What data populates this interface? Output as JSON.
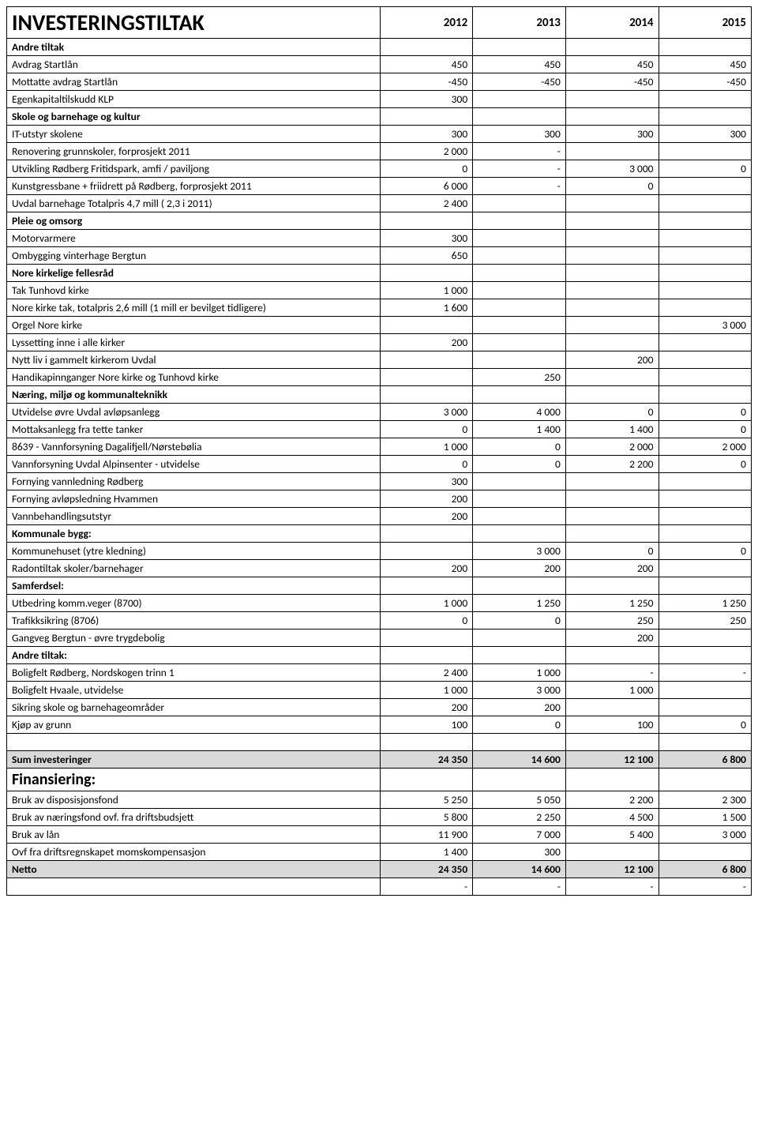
{
  "header": {
    "title": "INVESTERINGSTILTAK",
    "years": [
      "2012",
      "2013",
      "2014",
      "2015"
    ]
  },
  "sections": [
    {
      "type": "section",
      "label": "Andre tiltak"
    },
    {
      "type": "row",
      "label": "Avdrag Startlån",
      "vals": [
        "450",
        "450",
        "450",
        "450"
      ]
    },
    {
      "type": "row",
      "label": "Mottatte avdrag Startlån",
      "vals": [
        "-450",
        "-450",
        "-450",
        "-450"
      ]
    },
    {
      "type": "row",
      "label": "Egenkapitaltilskudd KLP",
      "vals": [
        "300",
        "",
        "",
        ""
      ]
    },
    {
      "type": "section",
      "label": "Skole og barnehage og kultur"
    },
    {
      "type": "row",
      "label": "IT-utstyr skolene",
      "vals": [
        "300",
        "300",
        "300",
        "300"
      ]
    },
    {
      "type": "row",
      "label": "Renovering grunnskoler, forprosjekt 2011",
      "vals": [
        "2 000",
        "-",
        "",
        ""
      ]
    },
    {
      "type": "row",
      "label": "Utvikling Rødberg Fritidspark, amfi / paviljong",
      "vals": [
        "0",
        "-",
        "3 000",
        "0"
      ]
    },
    {
      "type": "row",
      "label": "Kunstgressbane + friidrett på Rødberg, forprosjekt 2011",
      "vals": [
        "6 000",
        "-",
        "0",
        ""
      ]
    },
    {
      "type": "row",
      "label": "Uvdal barnehage Totalpris 4,7 mill ( 2,3 i 2011)",
      "vals": [
        "2 400",
        "",
        "",
        ""
      ]
    },
    {
      "type": "section",
      "label": "Pleie og omsorg"
    },
    {
      "type": "row",
      "label": "Motorvarmere",
      "vals": [
        "300",
        "",
        "",
        ""
      ]
    },
    {
      "type": "row",
      "label": "Ombygging vinterhage Bergtun",
      "vals": [
        "650",
        "",
        "",
        ""
      ]
    },
    {
      "type": "section",
      "label": "Nore kirkelige fellesråd"
    },
    {
      "type": "row",
      "label": "Tak Tunhovd kirke",
      "vals": [
        "1 000",
        "",
        "",
        ""
      ]
    },
    {
      "type": "row",
      "label": "Nore kirke tak, totalpris 2,6 mill (1 mill er bevilget tidligere)",
      "vals": [
        "1 600",
        "",
        "",
        ""
      ]
    },
    {
      "type": "row",
      "label": "Orgel Nore kirke",
      "vals": [
        "",
        "",
        "",
        "3 000"
      ]
    },
    {
      "type": "row",
      "label": "Lyssetting inne i alle kirker",
      "vals": [
        "200",
        "",
        "",
        ""
      ]
    },
    {
      "type": "row",
      "label": "Nytt liv i gammelt kirkerom Uvdal",
      "vals": [
        "",
        "",
        "200",
        ""
      ]
    },
    {
      "type": "row",
      "label": "Handikapinnganger Nore kirke og Tunhovd kirke",
      "vals": [
        "",
        "250",
        "",
        ""
      ]
    },
    {
      "type": "section",
      "label": "Næring, miljø og kommunalteknikk"
    },
    {
      "type": "row",
      "label": "Utvidelse øvre Uvdal avløpsanlegg",
      "vals": [
        "3 000",
        "4 000",
        "0",
        "0"
      ]
    },
    {
      "type": "row",
      "label": "Mottaksanlegg fra tette tanker",
      "vals": [
        "0",
        "1 400",
        "1 400",
        "0"
      ]
    },
    {
      "type": "row",
      "label": "8639 - Vannforsyning Dagalifjell/Nørstebølia",
      "vals": [
        "1 000",
        "0",
        "2 000",
        "2 000"
      ]
    },
    {
      "type": "row",
      "label": "Vannforsyning Uvdal Alpinsenter - utvidelse",
      "vals": [
        "0",
        "0",
        "2 200",
        "0"
      ]
    },
    {
      "type": "row",
      "label": "Fornying vannledning Rødberg",
      "vals": [
        "300",
        "",
        "",
        ""
      ]
    },
    {
      "type": "row",
      "label": "Fornying avløpsledning Hvammen",
      "vals": [
        "200",
        "",
        "",
        ""
      ]
    },
    {
      "type": "row",
      "label": "Vannbehandlingsutstyr",
      "vals": [
        "200",
        "",
        "",
        ""
      ]
    },
    {
      "type": "section",
      "label": "Kommunale bygg:"
    },
    {
      "type": "row",
      "label": "Kommunehuset (ytre kledning)",
      "vals": [
        "",
        "3 000",
        "0",
        "0"
      ]
    },
    {
      "type": "row",
      "label": "Radontiltak skoler/barnehager",
      "vals": [
        "200",
        "200",
        "200",
        ""
      ]
    },
    {
      "type": "section",
      "label": "Samferdsel:"
    },
    {
      "type": "row",
      "label": "Utbedring komm.veger (8700)",
      "vals": [
        "1 000",
        "1 250",
        "1 250",
        "1 250"
      ]
    },
    {
      "type": "row",
      "label": "Trafikksikring (8706)",
      "vals": [
        "0",
        "0",
        "250",
        "250"
      ]
    },
    {
      "type": "row",
      "label": "Gangveg Bergtun - øvre trygdebolig",
      "vals": [
        "",
        "",
        "200",
        ""
      ]
    },
    {
      "type": "section",
      "label": "Andre tiltak:"
    },
    {
      "type": "row",
      "label": "Boligfelt Rødberg, Nordskogen trinn 1",
      "vals": [
        "2 400",
        "1 000",
        "-",
        "-"
      ]
    },
    {
      "type": "row",
      "label": "Boligfelt Hvaale, utvidelse",
      "vals": [
        "1 000",
        "3 000",
        "1 000",
        ""
      ]
    },
    {
      "type": "row",
      "label": "Sikring skole og barnehageområder",
      "vals": [
        "200",
        "200",
        "",
        ""
      ]
    },
    {
      "type": "row",
      "label": "Kjøp av grunn",
      "vals": [
        "100",
        "0",
        "100",
        "0"
      ]
    },
    {
      "type": "blank"
    },
    {
      "type": "sum",
      "label": "Sum investeringer",
      "vals": [
        "24 350",
        "14 600",
        "12 100",
        "6 800"
      ]
    },
    {
      "type": "finhdr",
      "label": "Finansiering:"
    },
    {
      "type": "row",
      "label": "Bruk av disposisjonsfond",
      "vals": [
        "5 250",
        "5 050",
        "2 200",
        "2 300"
      ]
    },
    {
      "type": "row",
      "label": "Bruk av næringsfond ovf. fra driftsbudsjett",
      "vals": [
        "5 800",
        "2 250",
        "4 500",
        "1 500"
      ]
    },
    {
      "type": "row",
      "label": "Bruk av lån",
      "vals": [
        "11 900",
        "7 000",
        "5 400",
        "3 000"
      ]
    },
    {
      "type": "row",
      "label": "Ovf fra driftsregnskapet momskompensasjon",
      "vals": [
        "1 400",
        "300",
        "",
        ""
      ]
    },
    {
      "type": "sum",
      "label": "Netto",
      "vals": [
        "24 350",
        "14 600",
        "12 100",
        "6 800"
      ]
    },
    {
      "type": "bottom",
      "vals": [
        "-",
        "-",
        "-",
        "-"
      ]
    }
  ]
}
